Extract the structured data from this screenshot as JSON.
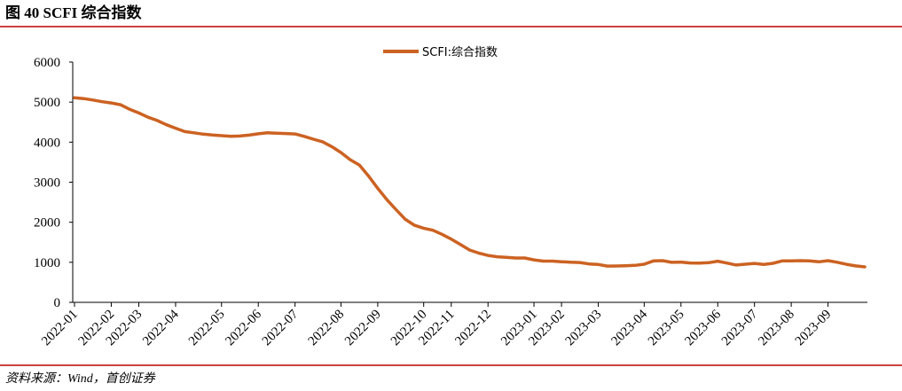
{
  "chart_data": {
    "type": "line",
    "title": "图 40 SCFI 综合指数",
    "source": "资料来源：Wind，首创证券",
    "categories": [
      "2022-01",
      null,
      null,
      null,
      "2022-02",
      null,
      null,
      "2022-03",
      null,
      null,
      null,
      "2022-04",
      null,
      null,
      null,
      null,
      "2022-05",
      null,
      null,
      null,
      "2022-06",
      null,
      null,
      null,
      "2022-07",
      null,
      null,
      null,
      null,
      "2022-08",
      null,
      null,
      null,
      "2022-09",
      null,
      null,
      null,
      null,
      "2022-10",
      null,
      null,
      "2022-11",
      null,
      null,
      null,
      "2022-12",
      null,
      null,
      null,
      null,
      "2023-01",
      null,
      null,
      "2023-02",
      null,
      null,
      null,
      "2023-03",
      null,
      null,
      null,
      null,
      "2023-04",
      null,
      null,
      null,
      "2023-05",
      null,
      null,
      null,
      "2023-06",
      null,
      null,
      null,
      "2023-07",
      null,
      null,
      null,
      "2023-08",
      null,
      null,
      null,
      "2023-09",
      null,
      null,
      null,
      null
    ],
    "series": [
      {
        "name": "SCFI:综合指数",
        "color": "#cc6222",
        "values": [
          5110,
          5088,
          5053,
          5010,
          4980,
          4935,
          4819,
          4729,
          4623,
          4540,
          4434,
          4348,
          4264,
          4234,
          4200,
          4177,
          4163,
          4147,
          4154,
          4175,
          4209,
          4234,
          4222,
          4216,
          4204,
          4144,
          4074,
          4009,
          3888,
          3739,
          3562,
          3429,
          3154,
          2848,
          2562,
          2313,
          2073,
          1923,
          1850,
          1800,
          1698,
          1579,
          1443,
          1306,
          1229,
          1171,
          1139,
          1124,
          1108,
          1108,
          1061,
          1029,
          1030,
          1013,
          1000,
          995,
          959,
          946,
          906,
          908,
          914,
          923,
          951,
          1033,
          1041,
          999,
          1005,
          983,
          981,
          990,
          1028,
          980,
          931,
          953,
          973,
          947,
          975,
          1034,
          1037,
          1040,
          1035,
          1011,
          1040,
          1000,
          949,
          911,
          886
        ]
      }
    ],
    "ylim": [
      0,
      6000
    ],
    "yticks": [
      0,
      1000,
      2000,
      3000,
      4000,
      5000,
      6000
    ],
    "grid": false,
    "legend": "top"
  }
}
